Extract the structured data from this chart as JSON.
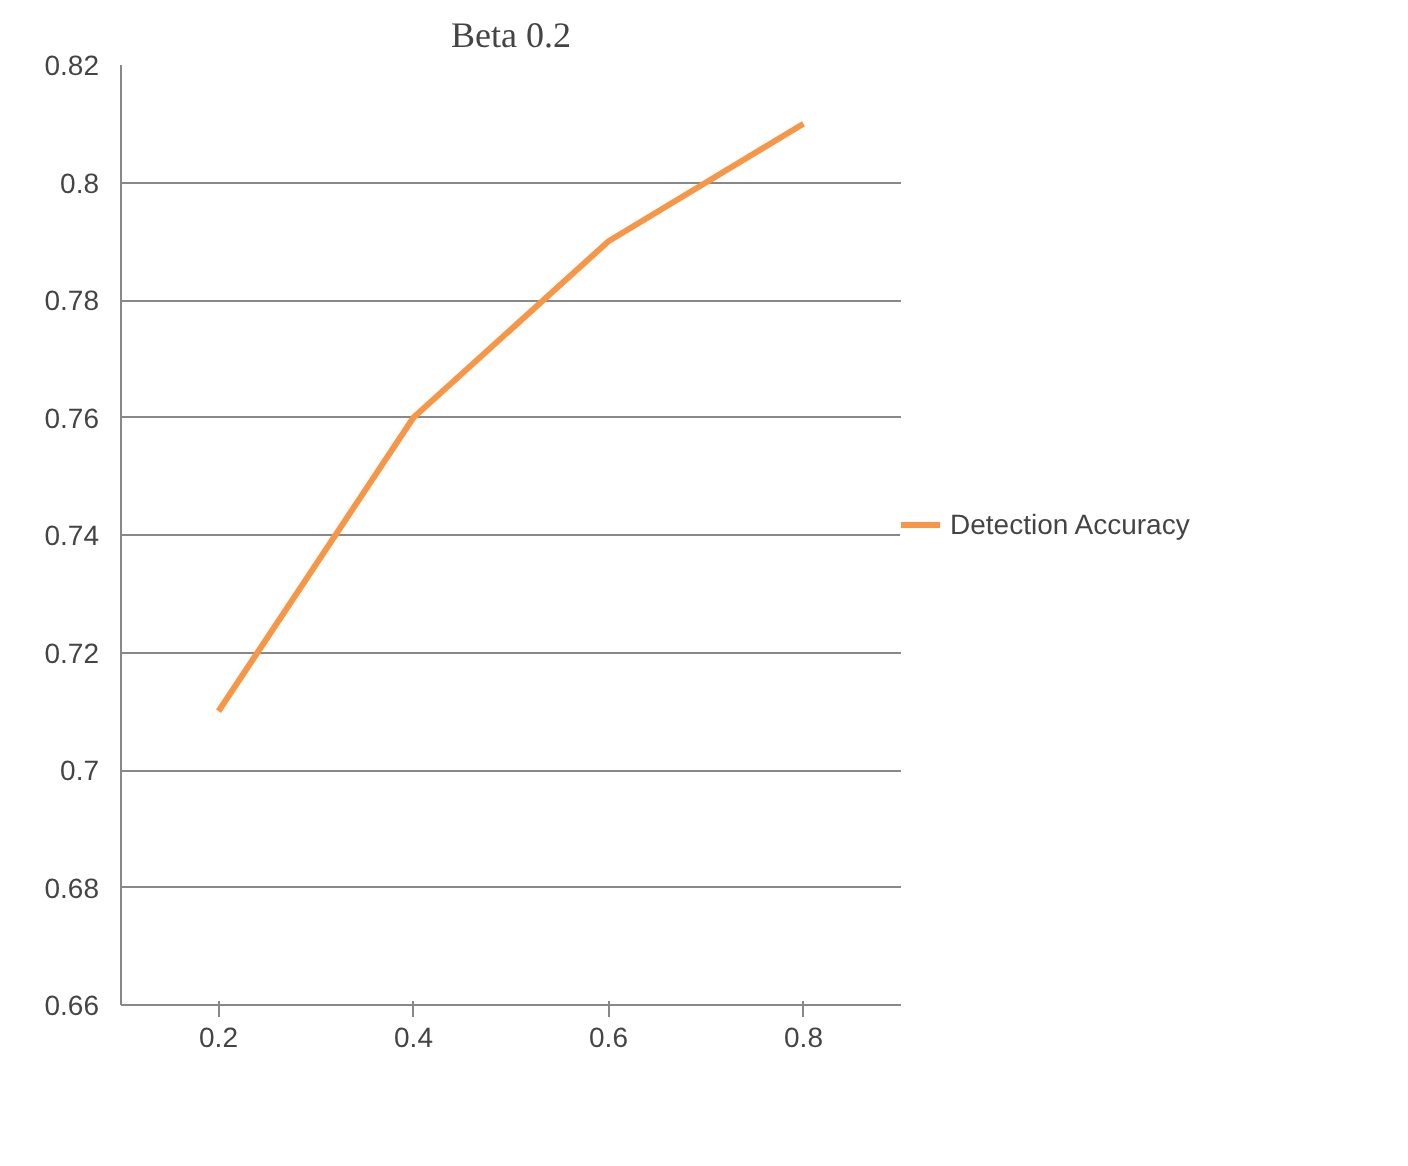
{
  "chart_data": {
    "type": "line",
    "title": "Beta 0.2",
    "categories": [
      "0.2",
      "0.4",
      "0.6",
      "0.8"
    ],
    "series": [
      {
        "name": "Detection Accuracy",
        "color": "#f79646",
        "values": [
          0.71,
          0.76,
          0.79,
          0.81
        ]
      }
    ],
    "ylim": [
      0.66,
      0.82
    ],
    "yticks": [
      0.66,
      0.68,
      0.7,
      0.72,
      0.74,
      0.76,
      0.78,
      0.8,
      0.82
    ],
    "grid": "y",
    "legend": "right",
    "marker": "none",
    "line_style": "solid"
  }
}
